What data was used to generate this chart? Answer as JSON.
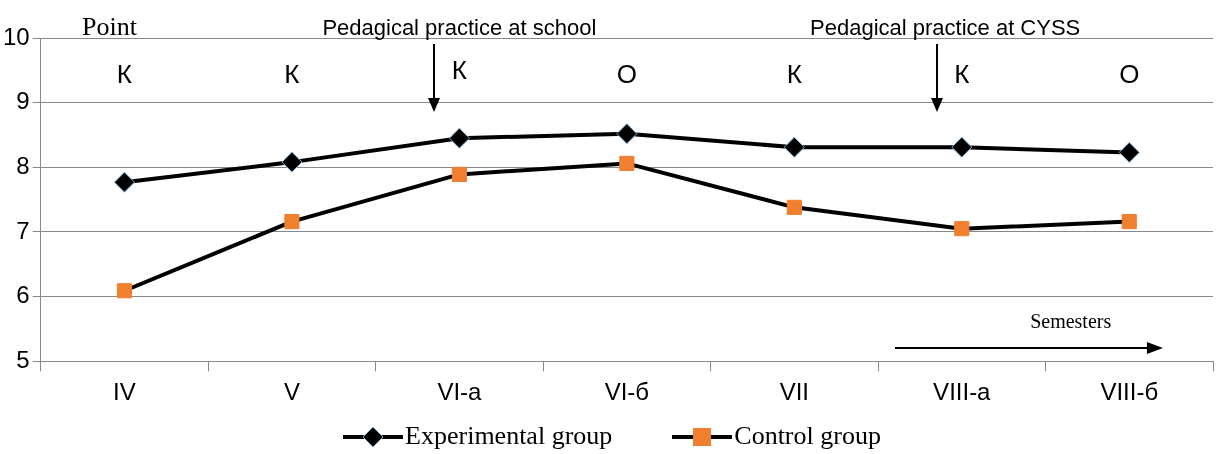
{
  "chart_data": {
    "type": "line",
    "ylabel": "Point",
    "xlabel": "Semesters",
    "categories": [
      "IV",
      "V",
      "VI-a",
      "VI-б",
      "VII",
      "VIII-a",
      "VIII-б"
    ],
    "series": [
      {
        "name": "Experimental group",
        "color": "#000000",
        "marker": "diamond",
        "values": [
          7.77,
          8.08,
          8.45,
          8.52,
          8.31,
          8.31,
          8.23
        ]
      },
      {
        "name": "Control group",
        "color": "#f07f2f",
        "marker": "square",
        "values": [
          6.09,
          7.16,
          7.89,
          8.06,
          7.38,
          7.05,
          7.16
        ]
      }
    ],
    "ylim": [
      5,
      10
    ],
    "yticks": [
      5,
      6,
      7,
      8,
      9,
      10
    ],
    "grid": "y",
    "legend": "bottom",
    "line_style": "solid",
    "annotations": [
      "К",
      "К",
      "К",
      "О",
      "К",
      "К",
      "О",
      "Pedagical practice at school",
      "Pedagical practice at CYSS"
    ]
  }
}
